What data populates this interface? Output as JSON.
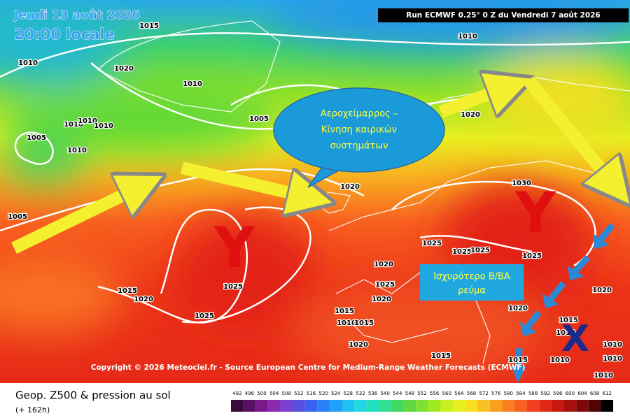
{
  "header": {
    "date": "Jeudi 13 août 2026",
    "time": "20:00 locale",
    "run": "Run ECMWF 0.25° 0 Z du Vendredi 7 août 2026"
  },
  "annotations": {
    "jet_bubble": [
      "Αεροχείμαρρος –",
      "Κίνηση καιρικών",
      "συστημάτων"
    ],
    "flow_box": [
      "Ισχυρότερο Β/ΒΑ",
      "ρεύμα"
    ],
    "ridge_west": "Y",
    "ridge_east": "Y",
    "low": "X"
  },
  "isobar_labels": [
    1015,
    1010,
    1010,
    1020,
    1010,
    1010,
    1010,
    1010,
    1005,
    1010,
    1005,
    1020,
    1020,
    1030,
    1005,
    1025,
    1015,
    1020,
    1025,
    1020,
    1025,
    1025,
    1025,
    1025,
    1025,
    1020,
    1015,
    1010,
    1015,
    1020,
    1020,
    1015,
    1010,
    1010,
    1020,
    1015,
    1015,
    1010,
    1010,
    1010
  ],
  "copyright": "Copyright © 2026 Meteociel.fr - Source European Centre for Medium-Range Weather Forecasts (ECMWF)",
  "footer": {
    "title": "Geop. Z500 & pression au sol",
    "lead": "(+ 162h)"
  },
  "scale": {
    "values": [
      492,
      496,
      500,
      504,
      508,
      512,
      516,
      520,
      524,
      528,
      532,
      536,
      540,
      544,
      548,
      552,
      556,
      560,
      564,
      568,
      572,
      576,
      580,
      584,
      588,
      592,
      596,
      600,
      604,
      608,
      612
    ],
    "colors": [
      "#3a0a3a",
      "#5a1060",
      "#7a1a8a",
      "#8a2ab0",
      "#7a40d0",
      "#5a50e0",
      "#3a60f0",
      "#2a80f8",
      "#20a0f8",
      "#20c0f0",
      "#20d8e0",
      "#20e0c0",
      "#30e090",
      "#40d860",
      "#60d840",
      "#80e030",
      "#a0e820",
      "#c8f020",
      "#e8f020",
      "#f8e020",
      "#f8c020",
      "#f8a020",
      "#f88020",
      "#f86020",
      "#f04020",
      "#e02818",
      "#c81810",
      "#a81010",
      "#800808",
      "#500404",
      "#000000"
    ]
  }
}
